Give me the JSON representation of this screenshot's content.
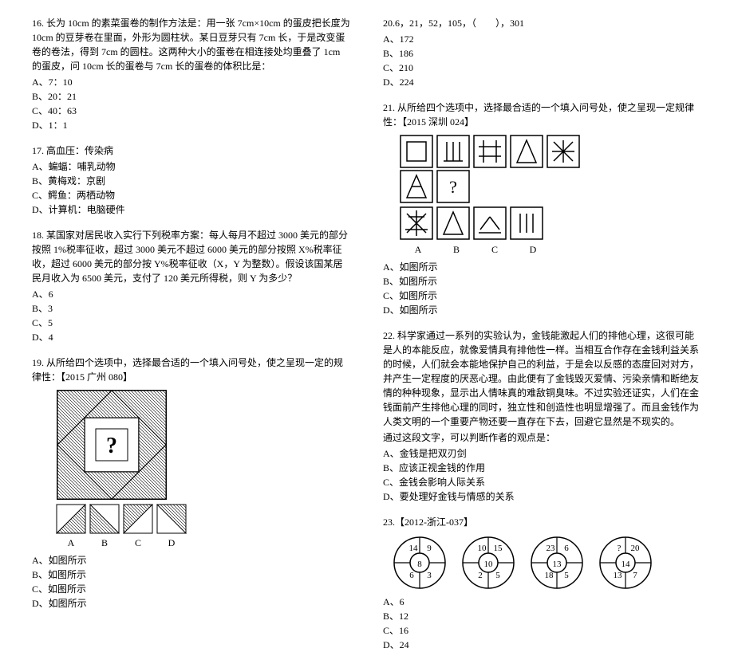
{
  "left": {
    "q16": {
      "text": "16. 长为 10cm 的素菜蛋卷的制作方法是：用一张 7cm×10cm 的蛋皮把长度为 10cm 的豆芽卷在里面，外形为圆柱状。某日豆芽只有 7cm 长，于是改变蛋卷的卷法，得到 7cm 的圆柱。这两种大小的蛋卷在相连接处均重叠了 1cm 的蛋皮，问 10cm 长的蛋卷与 7cm 长的蛋卷的体积比是：",
      "A": "A、7：10",
      "B": "B、20：21",
      "C": "C、40：63",
      "D": "D、1：1"
    },
    "q17": {
      "text": "17. 高血压：传染病",
      "A": "A、蝙蝠：哺乳动物",
      "B": "B、黄梅戏：京剧",
      "C": "C、鳄鱼：两栖动物",
      "D": "D、计算机：电脑硬件"
    },
    "q18": {
      "text": "18. 某国家对居民收入实行下列税率方案：每人每月不超过 3000 美元的部分按照 1%税率征收，超过 3000 美元不超过 6000 美元的部分按照 X%税率征收，超过 6000 美元的部分按 Y%税率征收（X，Y 为整数）。假设该国某居民月收入为 6500 美元，支付了 120 美元所得税，则 Y 为多少？",
      "A": "A、6",
      "B": "B、3",
      "C": "C、5",
      "D": "D、4"
    },
    "q19": {
      "text": "19. 从所给四个选项中，选择最合适的一个填入问号处，使之呈现一定的规律性：【2015 广州 080】",
      "A": "A、如图所示",
      "B": "B、如图所示",
      "C": "C、如图所示",
      "D": "D、如图所示",
      "labels": [
        "A",
        "B",
        "C",
        "D"
      ]
    }
  },
  "right": {
    "seq": {
      "text": "20.6，21，52，105，（　　），301",
      "A": "A、172",
      "B": "B、186",
      "C": "C、210",
      "D": "D、224"
    },
    "q21": {
      "text": "21. 从所给四个选项中，选择最合适的一个填入问号处，使之呈现一定规律性：【2015 深圳 024】",
      "A": "A、如图所示",
      "B": "B、如图所示",
      "C": "C、如图所示",
      "D": "D、如图所示",
      "labels": [
        "A",
        "B",
        "C",
        "D"
      ]
    },
    "q22": {
      "text": "22. 科学家通过一系列的实验认为，金钱能激起人们的排他心理，这很可能是人的本能反应，就像爱情具有排他性一样。当相互合作存在金钱利益关系的时候，人们就会本能地保护自己的利益，于是会以反感的态度回对对方，并产生一定程度的厌恶心理。由此便有了金钱毁灭爱情、污染亲情和断绝友情的种种现象，显示出人情味真的难敌铜臭味。不过实验还证实，人们在金钱面前产生排他心理的同时，独立性和创造性也明显增强了。而且金钱作为人类文明的一个重要产物还要一直存在下去，回避它显然是不现实的。",
      "sub": "通过这段文字，可以判断作者的观点是：",
      "A": "A、金钱是把双刃剑",
      "B": "B、应该正视金钱的作用",
      "C": "C、金钱会影响人际关系",
      "D": "D、要处理好金钱与情感的关系"
    },
    "q23": {
      "text": "23.【2012-浙江-037】",
      "circles": [
        {
          "t": "14",
          "r": "9",
          "l": "8",
          "b": "3",
          "bl": "6"
        },
        {
          "t": "10",
          "r": "15",
          "l": "10",
          "b": "5",
          "bl": "2"
        },
        {
          "t": "23",
          "r": "6",
          "l": "13",
          "b": "5",
          "bl": "18"
        },
        {
          "t": "?",
          "r": "20",
          "l": "14",
          "b": "7",
          "bl": "13"
        }
      ],
      "A": "A、6",
      "B": "B、12",
      "C": "C、16",
      "D": "D、24"
    }
  }
}
